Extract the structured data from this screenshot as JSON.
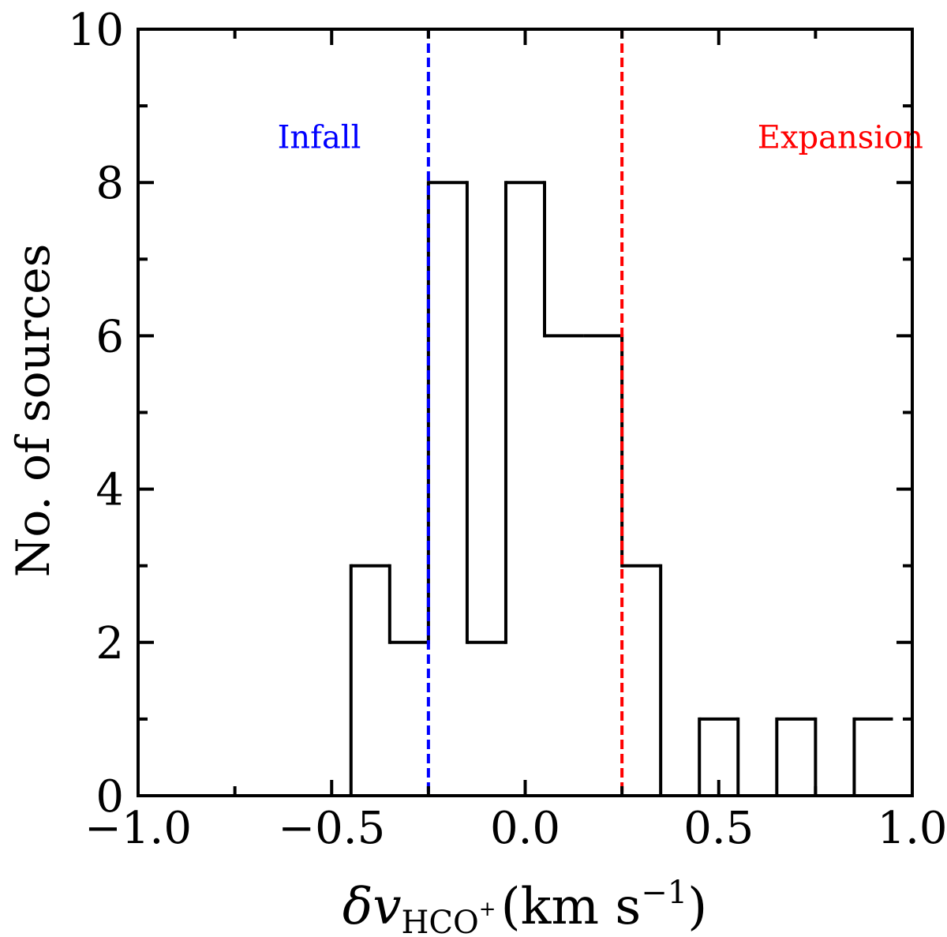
{
  "chart_data": {
    "type": "histogram",
    "title": "",
    "xlabel": "δv_HCO+ (km s^-1)",
    "xlabel_parts": {
      "symbol": "δv",
      "subscript": "HCO",
      "superscript_plus": "+",
      "unit_open": "(km s",
      "unit_exp": "−1",
      "unit_close": ")"
    },
    "ylabel": "No. of sources",
    "xlim": [
      -1.0,
      1.0
    ],
    "ylim": [
      0,
      10
    ],
    "x_ticks": [
      -1.0,
      -0.5,
      0.0,
      0.5,
      1.0
    ],
    "x_tick_labels": [
      "−1.0",
      "−0.5",
      "0.0",
      "0.5",
      "1.0"
    ],
    "y_ticks": [
      0,
      2,
      4,
      6,
      8,
      10
    ],
    "y_tick_labels": [
      "0",
      "2",
      "4",
      "6",
      "8",
      "10"
    ],
    "bin_edges": [
      -1.05,
      -0.95,
      -0.85,
      -0.75,
      -0.65,
      -0.55,
      -0.45,
      -0.35,
      -0.25,
      -0.15,
      -0.05,
      0.05,
      0.15,
      0.25,
      0.35,
      0.45,
      0.55,
      0.65,
      0.75,
      0.85,
      0.95
    ],
    "counts": [
      0,
      0,
      0,
      0,
      0,
      0,
      3,
      2,
      8,
      2,
      8,
      6,
      6,
      3,
      0,
      1,
      0,
      1,
      0,
      1
    ],
    "vlines": [
      {
        "x": -0.25,
        "color": "#0000ff",
        "style": "dashed"
      },
      {
        "x": 0.25,
        "color": "#ff0000",
        "style": "dashed"
      }
    ],
    "annotations": [
      {
        "text": "Infall",
        "x": -0.64,
        "y": 8.45,
        "color": "#0000ff"
      },
      {
        "text": "Expansion",
        "x": 0.6,
        "y": 8.45,
        "color": "#ff0000"
      }
    ]
  }
}
